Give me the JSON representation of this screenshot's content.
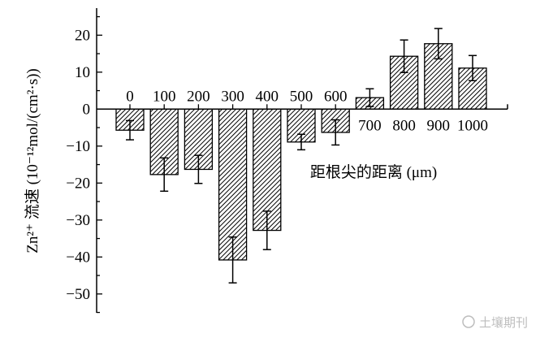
{
  "chart_data": {
    "type": "bar",
    "categories": [
      "0",
      "100",
      "200",
      "300",
      "400",
      "500",
      "600",
      "700",
      "800",
      "900",
      "1000"
    ],
    "values": [
      -5.7,
      -17.7,
      -16.3,
      -40.8,
      -32.8,
      -8.9,
      -6.3,
      3.1,
      14.3,
      17.7,
      11.1
    ],
    "errors": [
      2.6,
      4.5,
      3.8,
      6.2,
      5.2,
      2.1,
      3.4,
      2.4,
      4.4,
      4.1,
      3.4
    ],
    "xlabel": "距根尖的距离 (μm)",
    "ylabel": "Zn²⁺ 流速 (10⁻¹²mol/(cm²·s))",
    "ylim": [
      -55,
      27
    ],
    "yticks": [
      20,
      10,
      0,
      -10,
      -20,
      -30,
      -40,
      -50
    ],
    "ytick_labels": [
      "20",
      "10",
      "0",
      "−10",
      "−20",
      "−30",
      "−40",
      "−50"
    ],
    "grid": false,
    "bar_fill": "hatched",
    "colors": {
      "bar_edge": "#000000",
      "hatch": "#000000",
      "background": "#ffffff"
    }
  },
  "watermark": {
    "text": "土壤期刊"
  }
}
